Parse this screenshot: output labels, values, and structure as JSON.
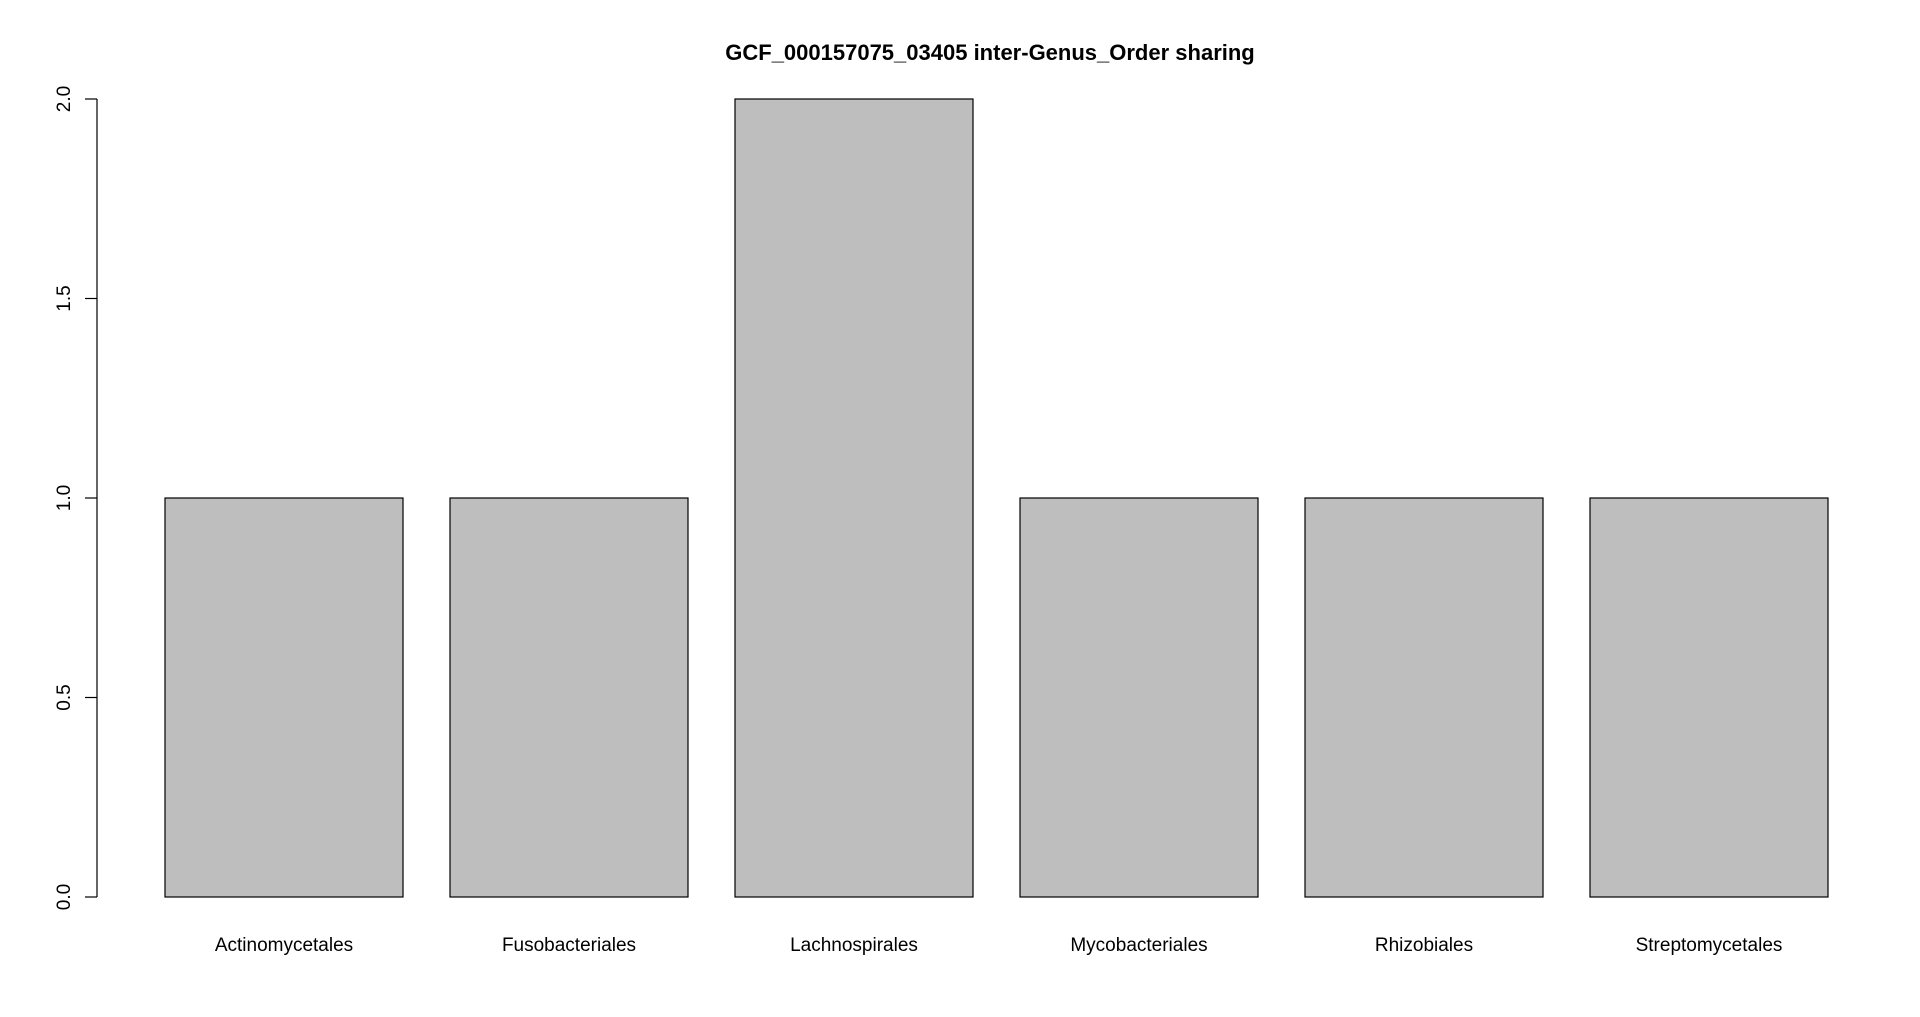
{
  "chart_data": {
    "type": "bar",
    "title": "GCF_000157075_03405 inter-Genus_Order sharing",
    "xlabel": "",
    "ylabel": "",
    "categories": [
      "Actinomycetales",
      "Fusobacteriales",
      "Lachnospirales",
      "Mycobacteriales",
      "Rhizobiales",
      "Streptomycetales"
    ],
    "values": [
      1,
      1,
      2,
      1,
      1,
      1
    ],
    "ylim": [
      0,
      2
    ],
    "yticks": [
      0.0,
      0.5,
      1.0,
      1.5,
      2.0
    ],
    "ytick_labels": [
      "0.0",
      "0.5",
      "1.0",
      "1.5",
      "2.0"
    ],
    "grid": false,
    "bar_color": "#bebebe",
    "border_color": "#000000"
  }
}
